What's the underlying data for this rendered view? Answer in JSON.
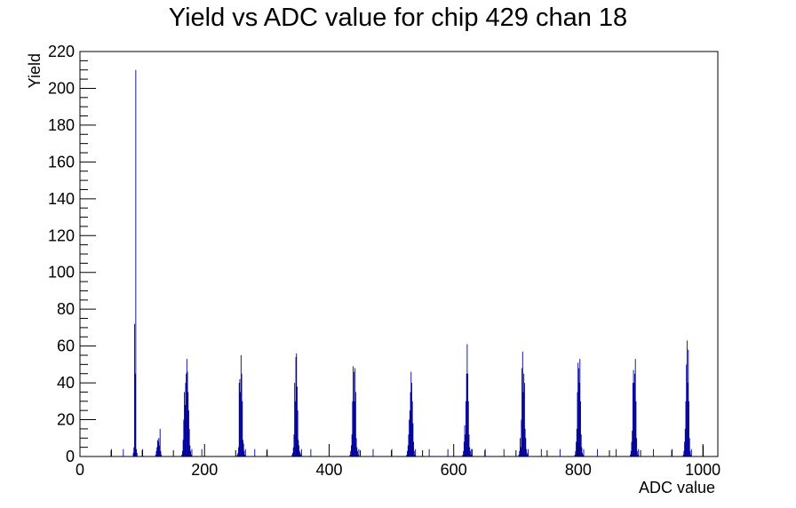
{
  "chart_data": {
    "type": "bar",
    "title": "Yield vs ADC value for chip 429 chan 18",
    "xlabel": "ADC value",
    "ylabel": "Yield",
    "xlim": [
      0,
      1024
    ],
    "ylim": [
      0,
      220
    ],
    "x_major_ticks": [
      0,
      200,
      400,
      600,
      800,
      1000
    ],
    "y_major_ticks": [
      0,
      20,
      40,
      60,
      80,
      100,
      120,
      140,
      160,
      180,
      200,
      220
    ],
    "grid": false,
    "legend": "none",
    "line_color": "#000099",
    "series": [
      {
        "bin_width": 1,
        "x": [
          50,
          69,
          85,
          86,
          87,
          88,
          89,
          90,
          91,
          100,
          121,
          122,
          123,
          124,
          125,
          126,
          127,
          128,
          129,
          130,
          163,
          164,
          165,
          166,
          167,
          168,
          169,
          170,
          171,
          172,
          173,
          174,
          175,
          176,
          177,
          178,
          179,
          195,
          252,
          253,
          254,
          255,
          256,
          257,
          258,
          259,
          260,
          261,
          262,
          263,
          264,
          265,
          280,
          300,
          340,
          341,
          342,
          343,
          344,
          345,
          346,
          347,
          348,
          349,
          350,
          351,
          352,
          353,
          354,
          355,
          370,
          433,
          434,
          435,
          436,
          437,
          438,
          439,
          440,
          441,
          442,
          443,
          444,
          445,
          446,
          447,
          470,
          500,
          524,
          525,
          526,
          527,
          528,
          529,
          530,
          531,
          532,
          533,
          534,
          535,
          536,
          537,
          538,
          560,
          590,
          614,
          615,
          616,
          617,
          618,
          619,
          620,
          621,
          622,
          623,
          624,
          625,
          626,
          627,
          628,
          629,
          650,
          680,
          704,
          705,
          706,
          707,
          708,
          709,
          710,
          711,
          712,
          713,
          714,
          715,
          716,
          717,
          718,
          719,
          740,
          770,
          794,
          795,
          796,
          797,
          798,
          799,
          800,
          801,
          802,
          803,
          804,
          805,
          806,
          807,
          808,
          830,
          860,
          883,
          884,
          885,
          886,
          887,
          888,
          889,
          890,
          891,
          892,
          893,
          894,
          895,
          896,
          920,
          950,
          968,
          969,
          970,
          971,
          972,
          973,
          974,
          975,
          976,
          977,
          978,
          979,
          980,
          981,
          1000
        ],
        "values": [
          4,
          4,
          2,
          5,
          72,
          45,
          210,
          4,
          2,
          4,
          1,
          3,
          5,
          9,
          8,
          10,
          6,
          15,
          3,
          1,
          1,
          3,
          9,
          20,
          35,
          28,
          40,
          45,
          53,
          46,
          35,
          25,
          15,
          6,
          3,
          1,
          4,
          4,
          1,
          2,
          5,
          40,
          42,
          35,
          55,
          45,
          30,
          9,
          7,
          3,
          1,
          4,
          4,
          4,
          1,
          2,
          5,
          12,
          40,
          30,
          54,
          56,
          38,
          25,
          9,
          6,
          3,
          2,
          1,
          4,
          4,
          1,
          3,
          6,
          12,
          30,
          49,
          46,
          30,
          48,
          35,
          10,
          5,
          3,
          1,
          4,
          4,
          4,
          1,
          3,
          6,
          12,
          20,
          25,
          35,
          46,
          40,
          30,
          18,
          8,
          3,
          1,
          4,
          4,
          4,
          1,
          3,
          8,
          17,
          12,
          30,
          45,
          61,
          45,
          30,
          12,
          5,
          3,
          1,
          4,
          4,
          4,
          4,
          1,
          3,
          10,
          5,
          20,
          48,
          57,
          35,
          45,
          40,
          15,
          10,
          4,
          2,
          1,
          4,
          4,
          4,
          1,
          3,
          8,
          15,
          35,
          51,
          48,
          40,
          53,
          30,
          12,
          5,
          2,
          1,
          4,
          4,
          4,
          1,
          3,
          8,
          14,
          40,
          47,
          40,
          45,
          53,
          30,
          10,
          3,
          1,
          4,
          4,
          4,
          1,
          3,
          8,
          15,
          30,
          50,
          63,
          40,
          58,
          30,
          10,
          3,
          1,
          4,
          6
        ]
      }
    ]
  }
}
